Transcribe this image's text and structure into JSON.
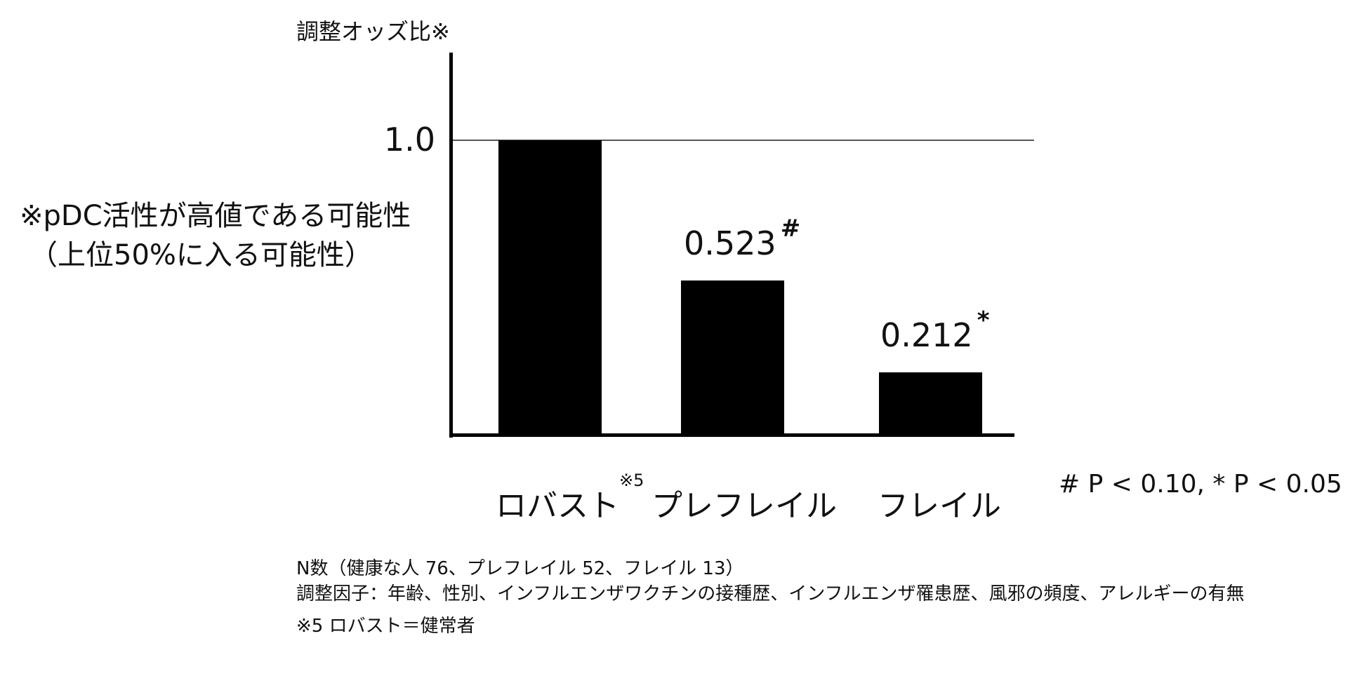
{
  "chart_data": {
    "type": "bar",
    "title": "",
    "ylabel": "調整オッズ比※",
    "ylabel_note": [
      "※pDC活性が高値である可能性",
      "（上位50%に入る可能性）"
    ],
    "xlabel": "",
    "categories": [
      "ロバスト",
      "プレフレイル",
      "フレイル"
    ],
    "category_superscripts": [
      "※5",
      "",
      ""
    ],
    "values": [
      1.0,
      0.523,
      0.212
    ],
    "value_labels": [
      "",
      "0.523",
      "0.212"
    ],
    "significance_marks": [
      "",
      "#",
      "*"
    ],
    "y_ticks": [
      "1.0"
    ],
    "reference_line": 1.0,
    "ylim": [
      0,
      1.35
    ],
    "grid": false,
    "legend": "# P < 0.10, * P < 0.05",
    "colors": {
      "bar": "#000000",
      "reference_line": "#555555"
    }
  },
  "notes": {
    "n_counts": "N数（健康な人 76、プレフレイル 52、フレイル 13）",
    "adjustment_factors": "調整因子：年齢、性別、インフルエンザワクチンの接種歴、インフルエンザ罹患歴、風邪の頻度、アレルギーの有無",
    "footnote_5": "※5 ロバスト＝健常者"
  }
}
